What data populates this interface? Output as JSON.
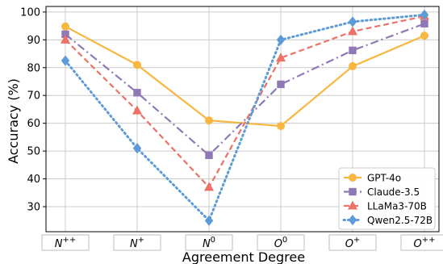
{
  "chart_data": {
    "type": "line",
    "title": "",
    "xlabel": "Agreement Degree",
    "ylabel": "Accuracy (%)",
    "categories": [
      {
        "base": "N",
        "sup": "++"
      },
      {
        "base": "N",
        "sup": "+"
      },
      {
        "base": "N",
        "sup": "0"
      },
      {
        "base": "O",
        "sup": "0"
      },
      {
        "base": "O",
        "sup": "+"
      },
      {
        "base": "O",
        "sup": "++"
      }
    ],
    "yticks": [
      "30",
      "40",
      "50",
      "60",
      "70",
      "80",
      "90",
      "100"
    ],
    "ylim": [
      21,
      102
    ],
    "grid": true,
    "legend_position": "bottom-right",
    "series": [
      {
        "name": "GPT-4o",
        "values": [
          94.8,
          81.0,
          61.0,
          59.0,
          80.5,
          91.5
        ],
        "color": "#F8B740",
        "dash": "solid",
        "marker": "circle"
      },
      {
        "name": "Claude-3.5",
        "values": [
          92.0,
          71.0,
          48.5,
          74.0,
          86.2,
          95.8
        ],
        "color": "#8E78B5",
        "dash": "dashdot",
        "marker": "square"
      },
      {
        "name": "LLaMa3-70B",
        "values": [
          90.0,
          64.5,
          37.0,
          83.5,
          93.0,
          98.5
        ],
        "color": "#EC7268",
        "dash": "dashed",
        "marker": "triangle"
      },
      {
        "name": "Qwen2.5-72B",
        "values": [
          82.5,
          51.0,
          25.0,
          90.0,
          96.5,
          99.0
        ],
        "color": "#5E9BD6",
        "dash": "dotted",
        "marker": "diamond"
      }
    ]
  }
}
